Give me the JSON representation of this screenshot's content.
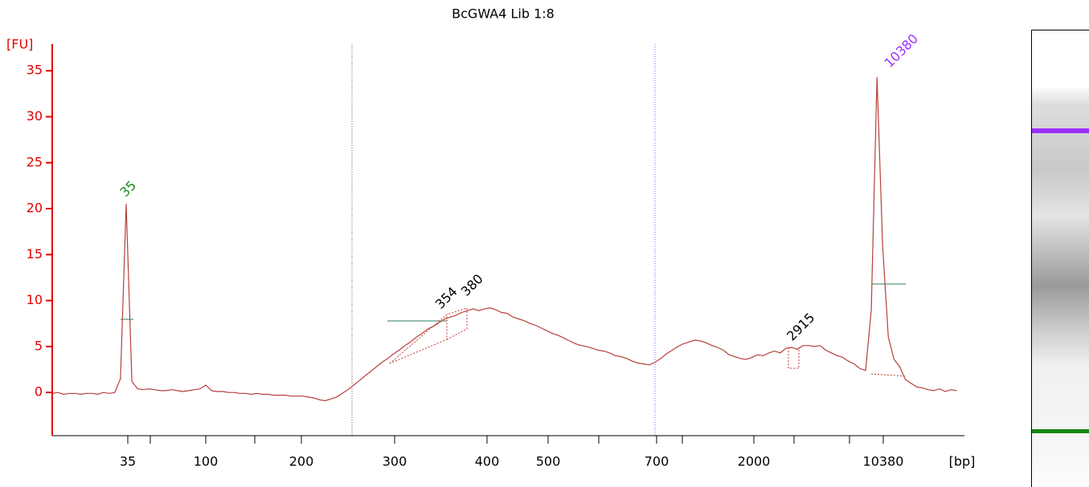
{
  "chart_data": {
    "type": "line",
    "title": "BcGWA4 Lib 1:8",
    "y_label": "[FU]",
    "x_label": "[bp]",
    "ylim": [
      -4.7,
      37.9
    ],
    "yticks": [
      0,
      5,
      10,
      15,
      20,
      25,
      30,
      35
    ],
    "y_axis_color": "#e00000",
    "x_tick_labels": [
      "35",
      null,
      "100",
      null,
      "200",
      "300",
      "400",
      "500",
      null,
      "700",
      null,
      "2000",
      null,
      null,
      "10380"
    ],
    "series": [
      {
        "color": "#b5403a",
        "values": [
          -0.1,
          0,
          -0.2,
          -0.1,
          -0.1,
          -0.2,
          -0.1,
          -0.1,
          -0.2,
          0,
          -0.1,
          0,
          1.5,
          20.5,
          1.2,
          0.4,
          0.3,
          0.4,
          0.3,
          0.2,
          0.2,
          0.3,
          0.2,
          0.1,
          0.2,
          0.3,
          0.4,
          0.8,
          0.2,
          0.1,
          0.1,
          0,
          0,
          -0.1,
          -0.1,
          -0.2,
          -0.1,
          -0.2,
          -0.2,
          -0.3,
          -0.3,
          -0.3,
          -0.4,
          -0.4,
          -0.4,
          -0.5,
          -0.6,
          -0.8,
          -0.9,
          -0.7,
          -0.5,
          -0.1,
          0.3,
          0.8,
          1.3,
          1.8,
          2.3,
          2.8,
          3.3,
          3.7,
          4.2,
          4.6,
          5.1,
          5.5,
          6.0,
          6.4,
          6.9,
          7.2,
          7.6,
          8.0,
          8.2,
          8.4,
          8.7,
          8.9,
          9.1,
          8.9,
          9.1,
          9.2,
          9.0,
          8.7,
          8.6,
          8.2,
          8.0,
          7.8,
          7.5,
          7.3,
          7.0,
          6.7,
          6.4,
          6.2,
          5.9,
          5.6,
          5.3,
          5.1,
          5.0,
          4.8,
          4.6,
          4.5,
          4.3,
          4.0,
          3.9,
          3.7,
          3.4,
          3.2,
          3.1,
          3.0,
          3.3,
          3.7,
          4.2,
          4.6,
          5.0,
          5.3,
          5.5,
          5.7,
          5.6,
          5.4,
          5.1,
          4.9,
          4.6,
          4.1,
          3.9,
          3.7,
          3.6,
          3.8,
          4.1,
          4.0,
          4.3,
          4.5,
          4.3,
          4.8,
          4.9,
          4.7,
          5.1,
          5.1,
          5.0,
          5.1,
          4.6,
          4.3,
          4.0,
          3.8,
          3.4,
          3.1,
          2.6,
          2.4,
          9.0,
          34.3,
          16,
          6,
          3.6,
          2.8,
          1.4,
          1.0,
          0.6,
          0.5,
          0.3,
          0.2,
          0.4,
          0.1,
          0.3,
          0.2
        ]
      }
    ],
    "annotations": [
      {
        "text": "35",
        "color": "#1a8a1a"
      },
      {
        "text": "354",
        "color": "#000000"
      },
      {
        "text": "380",
        "color": "#000000"
      },
      {
        "text": "2915",
        "color": "#000000"
      },
      {
        "text": "10380",
        "color": "#9b30ff"
      }
    ]
  }
}
